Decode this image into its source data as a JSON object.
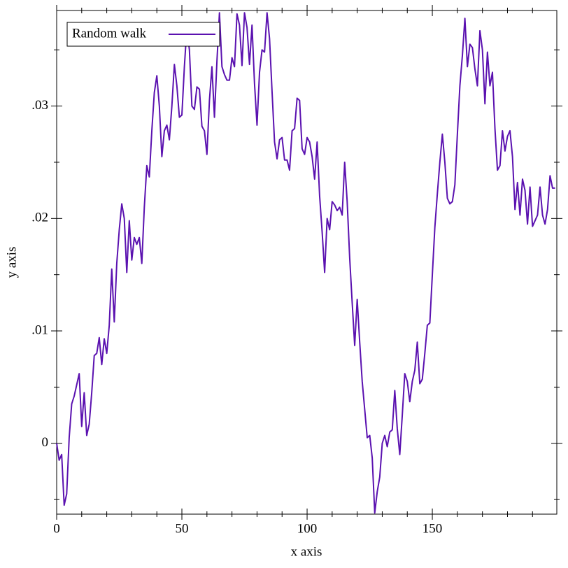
{
  "chart_data": {
    "type": "line",
    "xlabel": "x axis",
    "ylabel": "y axis",
    "x": [
      0,
      1,
      2,
      3,
      4,
      5,
      6,
      7,
      8,
      9,
      10,
      11,
      12,
      13,
      14,
      15,
      16,
      17,
      18,
      19,
      20,
      21,
      22,
      23,
      24,
      25,
      26,
      27,
      28,
      29,
      30,
      31,
      32,
      33,
      34,
      35,
      36,
      37,
      38,
      39,
      40,
      41,
      42,
      43,
      44,
      45,
      46,
      47,
      48,
      49,
      50,
      51,
      52,
      53,
      54,
      55,
      56,
      57,
      58,
      59,
      60,
      61,
      62,
      63,
      64,
      65,
      66,
      67,
      68,
      69,
      70,
      71,
      72,
      73,
      74,
      75,
      76,
      77,
      78,
      79,
      80,
      81,
      82,
      83,
      84,
      85,
      86,
      87,
      88,
      89,
      90,
      91,
      92,
      93,
      94,
      95,
      96,
      97,
      98,
      99,
      100,
      101,
      102,
      103,
      104,
      105,
      106,
      107,
      108,
      109,
      110,
      111,
      112,
      113,
      114,
      115,
      116,
      117,
      118,
      119,
      120,
      121,
      122,
      123,
      124,
      125,
      126,
      127,
      128,
      129,
      130,
      131,
      132,
      133,
      134,
      135,
      136,
      137,
      138,
      139,
      140,
      141,
      142,
      143,
      144,
      145,
      146,
      147,
      148,
      149,
      150,
      151,
      152,
      153,
      154,
      155,
      156,
      157,
      158,
      159,
      160,
      161,
      162,
      163,
      164,
      165,
      166,
      167,
      168,
      169,
      170,
      171,
      172,
      173,
      174,
      175,
      176,
      177,
      178,
      179,
      180,
      181,
      182,
      183,
      184,
      185,
      186,
      187,
      188,
      189,
      190,
      191,
      192,
      193,
      194,
      195,
      196,
      197,
      198,
      199
    ],
    "series": [
      {
        "name": "Random walk",
        "color": "#5b12b0",
        "values": [
          0.0,
          -0.0015,
          -0.001,
          -0.0055,
          -0.0045,
          0.0005,
          0.0035,
          0.0042,
          0.0052,
          0.0062,
          0.0015,
          0.0045,
          0.0007,
          0.0017,
          0.0045,
          0.0078,
          0.008,
          0.0094,
          0.007,
          0.0093,
          0.008,
          0.0105,
          0.0155,
          0.0108,
          0.016,
          0.019,
          0.0213,
          0.02,
          0.0152,
          0.0198,
          0.0163,
          0.0183,
          0.0177,
          0.0183,
          0.016,
          0.021,
          0.0247,
          0.0237,
          0.0278,
          0.0312,
          0.0327,
          0.03,
          0.0255,
          0.0278,
          0.0283,
          0.027,
          0.03,
          0.0337,
          0.0318,
          0.029,
          0.0292,
          0.0335,
          0.037,
          0.035,
          0.03,
          0.0297,
          0.0317,
          0.0315,
          0.0282,
          0.0278,
          0.0257,
          0.0305,
          0.0335,
          0.029,
          0.034,
          0.0383,
          0.0335,
          0.0328,
          0.0323,
          0.0323,
          0.0343,
          0.0335,
          0.0382,
          0.0372,
          0.0336,
          0.0383,
          0.037,
          0.0337,
          0.0372,
          0.032,
          0.0283,
          0.033,
          0.035,
          0.0348,
          0.0383,
          0.036,
          0.0313,
          0.0268,
          0.0253,
          0.027,
          0.0272,
          0.0252,
          0.0252,
          0.0243,
          0.0278,
          0.028,
          0.0307,
          0.0305,
          0.0262,
          0.0257,
          0.0272,
          0.0268,
          0.0255,
          0.0235,
          0.0268,
          0.022,
          0.0188,
          0.0152,
          0.02,
          0.019,
          0.0215,
          0.0212,
          0.0207,
          0.021,
          0.0203,
          0.025,
          0.0215,
          0.0165,
          0.0125,
          0.0087,
          0.0128,
          0.009,
          0.0055,
          0.003,
          0.0005,
          0.0007,
          -0.0013,
          -0.0062,
          -0.0043,
          -0.003,
          0.0,
          0.0007,
          -0.0003,
          0.001,
          0.0012,
          0.0047,
          0.0013,
          -0.001,
          0.0025,
          0.0062,
          0.0055,
          0.0037,
          0.0055,
          0.0065,
          0.009,
          0.0053,
          0.0057,
          0.008,
          0.0105,
          0.0107,
          0.015,
          0.0192,
          0.0222,
          0.025,
          0.0275,
          0.025,
          0.0218,
          0.0213,
          0.0215,
          0.023,
          0.0275,
          0.0318,
          0.0345,
          0.0378,
          0.0335,
          0.0355,
          0.0352,
          0.0333,
          0.0318,
          0.0367,
          0.035,
          0.0302,
          0.0348,
          0.0318,
          0.033,
          0.028,
          0.0243,
          0.0247,
          0.0278,
          0.026,
          0.0273,
          0.0278,
          0.0255,
          0.0208,
          0.0232,
          0.0203,
          0.0235,
          0.0225,
          0.0195,
          0.0228,
          0.0193,
          0.0198,
          0.0203,
          0.0228,
          0.0203,
          0.0195,
          0.0208,
          0.0238,
          0.0227,
          0.0227
        ]
      }
    ],
    "xlim": [
      0,
      199.7
    ],
    "ylim": [
      -0.0063,
      0.0385
    ],
    "xticks": [
      0,
      50,
      100,
      150
    ],
    "yticks": [
      0,
      {
        "value": 0.01,
        "label": ".01"
      },
      {
        "value": 0.02,
        "label": ".02"
      },
      {
        "value": 0.03,
        "label": ".03"
      }
    ],
    "xminorticks": [
      10,
      20,
      30,
      40,
      60,
      70,
      80,
      90,
      110,
      120,
      130,
      140,
      160,
      170,
      180,
      190
    ],
    "yminorticks": [
      -0.005,
      0.005,
      0.015,
      0.025,
      0.035
    ],
    "legend": "top-left"
  }
}
